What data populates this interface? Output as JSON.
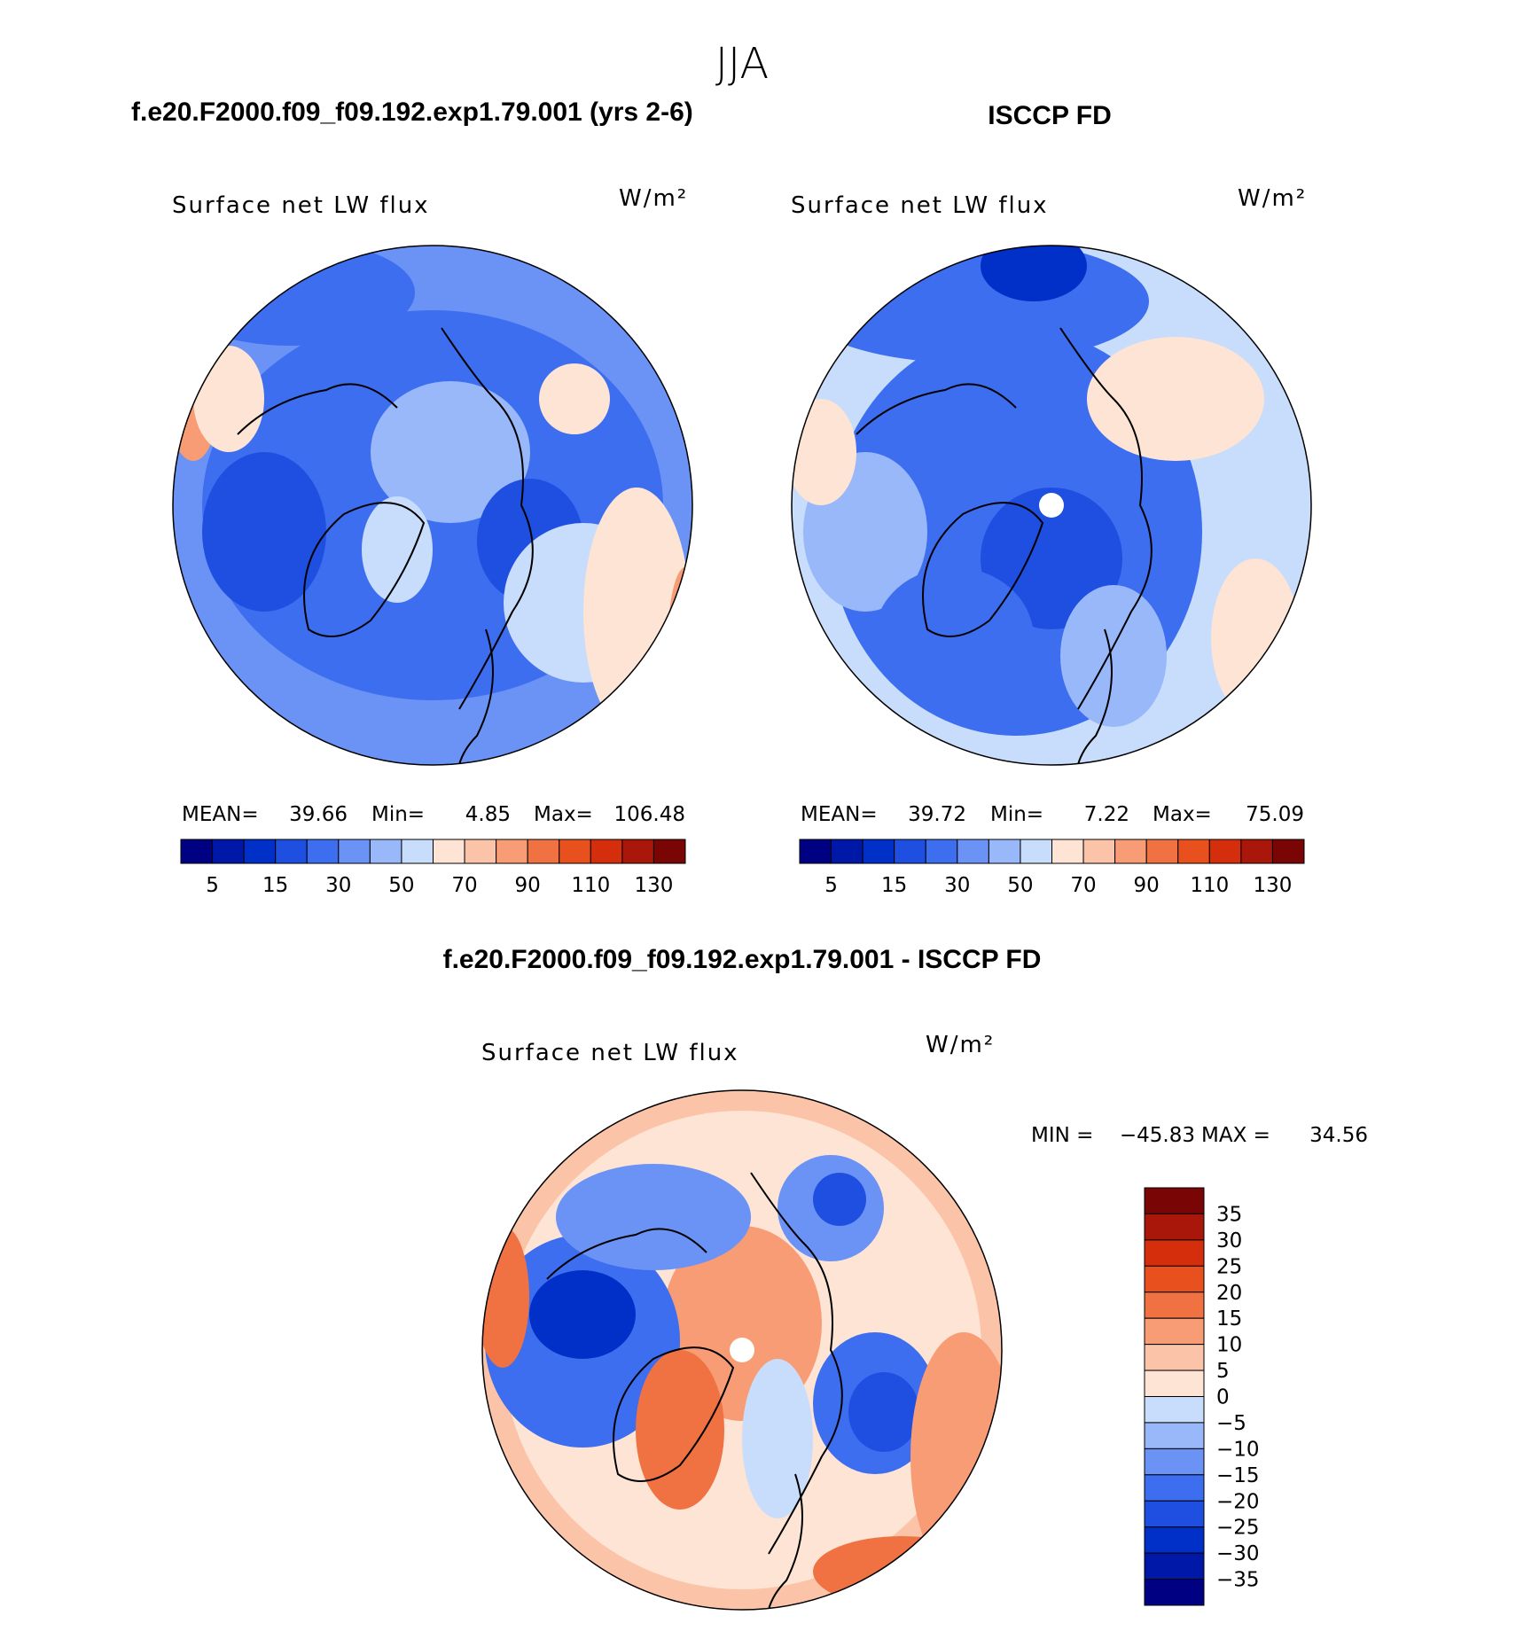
{
  "header": {
    "title": "JJA"
  },
  "panels": [
    {
      "title": "f.e20.F2000.f09_f09.192.exp1.79.001 (yrs 2-6)",
      "label": "Surface net LW flux",
      "units": "W/m²",
      "stats": [
        "MEAN=",
        "39.66",
        "Min=",
        "4.85",
        "Max=",
        "106.48"
      ],
      "colorbar": {
        "colors": [
          "#000082",
          "#0018a8",
          "#0030c8",
          "#1f4fe0",
          "#3d6ef0",
          "#6a93f5",
          "#98b8fa",
          "#c8ddfb",
          "#fde4d4",
          "#fbc4a8",
          "#f79c74",
          "#f07242",
          "#e8501e",
          "#d42e0c",
          "#a8170a",
          "#7a0505"
        ],
        "labels": [
          "5",
          "15",
          "30",
          "50",
          "70",
          "90",
          "110",
          "130"
        ]
      }
    },
    {
      "title": "ISCCP FD",
      "label": "Surface net LW flux",
      "units": "W/m²",
      "stats": [
        "MEAN=",
        "39.72",
        "Min=",
        "7.22",
        "Max=",
        "75.09"
      ],
      "colorbar": {
        "colors": [
          "#000082",
          "#0018a8",
          "#0030c8",
          "#1f4fe0",
          "#3d6ef0",
          "#6a93f5",
          "#98b8fa",
          "#c8ddfb",
          "#fde4d4",
          "#fbc4a8",
          "#f79c74",
          "#f07242",
          "#e8501e",
          "#d42e0c",
          "#a8170a",
          "#7a0505"
        ],
        "labels": [
          "5",
          "15",
          "30",
          "50",
          "70",
          "90",
          "110",
          "130"
        ]
      }
    },
    {
      "title": "f.e20.F2000.f09_f09.192.exp1.79.001 - ISCCP FD",
      "label": "Surface net LW flux",
      "units": "W/m²",
      "stats": [
        "MIN =",
        "−45.83",
        "MAX =",
        "34.56"
      ],
      "colorbar": {
        "colors": [
          "#7a0505",
          "#a8170a",
          "#d42e0c",
          "#e8501e",
          "#f07242",
          "#f79c74",
          "#fbc4a8",
          "#fde4d4",
          "#c8ddfb",
          "#98b8fa",
          "#6a93f5",
          "#3d6ef0",
          "#1f4fe0",
          "#0030c8",
          "#0018a8",
          "#000082"
        ],
        "labels": [
          "35",
          "30",
          "25",
          "20",
          "15",
          "10",
          "5",
          "0",
          "−5",
          "−10",
          "−15",
          "−20",
          "−25",
          "−30",
          "−35"
        ]
      }
    }
  ]
}
